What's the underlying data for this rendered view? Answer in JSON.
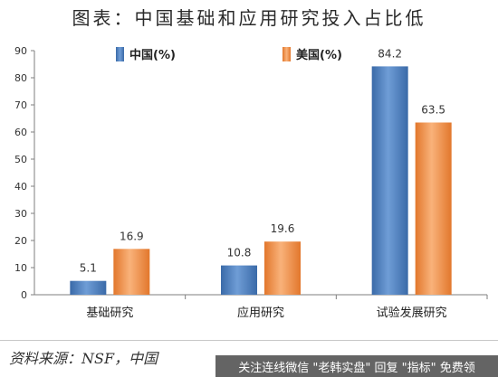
{
  "title": "图表：中国基础和应用研究投入占比低",
  "legend": [
    {
      "name": "中国(%)",
      "color": "#4f81bd"
    },
    {
      "name": "美国(%)",
      "color": "#f79646"
    }
  ],
  "chart_data": {
    "type": "bar",
    "title": "图表：中国基础和应用研究投入占比低",
    "categories": [
      "基础研究",
      "应用研究",
      "试验发展研究"
    ],
    "series": [
      {
        "name": "中国(%)",
        "values": [
          5.1,
          10.8,
          84.2
        ],
        "color": "#4f81bd"
      },
      {
        "name": "美国(%)",
        "values": [
          16.9,
          19.6,
          63.5
        ],
        "color": "#f79646"
      }
    ],
    "ylim": [
      0,
      90
    ],
    "yticks": [
      0,
      10,
      20,
      30,
      40,
      50,
      60,
      70,
      80,
      90
    ],
    "grid": false,
    "legend_position": "top-center",
    "xlabel": "",
    "ylabel": ""
  },
  "source": "资料来源：NSF，中国",
  "watermark": "关注连线微信 \"老韩实盘\" 回复 \"指标\" 免费领"
}
